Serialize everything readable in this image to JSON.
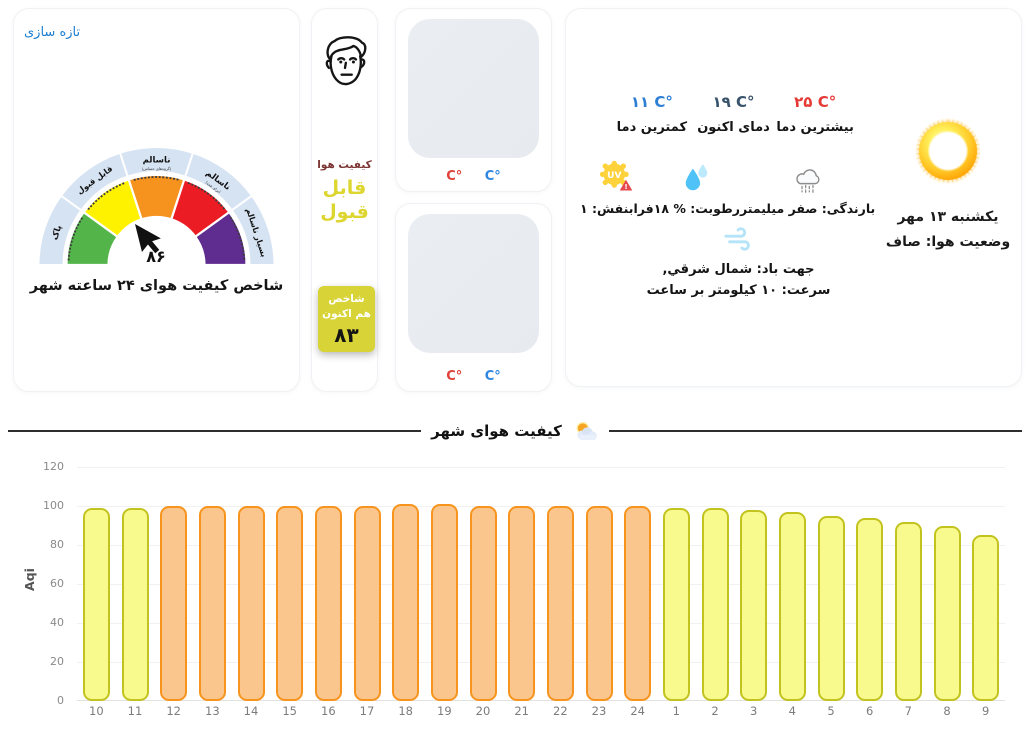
{
  "refresh_label": "تازه سازی",
  "colors": {
    "accent_blue": "#1e7fd0",
    "gauge_ring": "#d6e3f3",
    "divider_line": "#2e2e2e"
  },
  "gauge": {
    "value": "۸۶",
    "title": "شاخص کیفیت هوای ۲۴ ساعته شهر",
    "segments": [
      {
        "label": "پاک",
        "sublabel": "",
        "color": "#53b449"
      },
      {
        "label": "قابل قبول",
        "sublabel": "",
        "color": "#fff200"
      },
      {
        "label": "ناسالم",
        "sublabel": "(گروه‌های حساس)",
        "color": "#f6921e"
      },
      {
        "label": "ناسالم",
        "sublabel": "(برای همه)",
        "color": "#ec1c24"
      },
      {
        "label": "بسیار ناسالم",
        "sublabel": "",
        "color": "#5f2c90"
      }
    ]
  },
  "quality_card": {
    "label": "کیفیت هوا",
    "label_color": "#7b3333",
    "status": "قابل قبول",
    "status_color": "#ddd630",
    "badge_label": "شاخص هم اکنون",
    "badge_value": "۸۳",
    "badge_color": "#d8d336"
  },
  "image_cards": [
    {
      "temp_a": "C°",
      "temp_a_color": "#e04038",
      "temp_b": "C°",
      "temp_b_color": "#2d86e0"
    },
    {
      "temp_a": "C°",
      "temp_a_color": "#e04038",
      "temp_b": "C°",
      "temp_b_color": "#2d86e0"
    }
  ],
  "weather": {
    "temps": [
      {
        "value": "۱۱ C°",
        "label": "کمترین دما",
        "color": "#2e7ed4"
      },
      {
        "value": "۱۹ C°",
        "label": "دمای اکنون",
        "color": "#39536b"
      },
      {
        "value": "۲۵ C°",
        "label": "بیشترین دما",
        "color": "#e53935"
      }
    ],
    "metrics": [
      {
        "name": "uv",
        "label": "فرابنفش: ۱"
      },
      {
        "name": "humidity",
        "label": "رطوبت: % ۱۸"
      },
      {
        "name": "rain",
        "label": "بارندگی: صفر میلیمتر"
      }
    ],
    "wind": {
      "direction": "جهت باد: شمال شرقي,",
      "speed": "سرعت: ۱۰ کیلومتر بر ساعت"
    },
    "date": "یکشنبه ۱۳ مهر",
    "condition": "وضعیت هوا: صاف"
  },
  "section": {
    "title": "کیفیت هوای شهر"
  },
  "chart_data": {
    "type": "bar",
    "title": "کیفیت هوای شهر",
    "xlabel": "",
    "ylabel": "Aqi",
    "ylim": [
      0,
      120
    ],
    "yticks": [
      0,
      20,
      40,
      60,
      80,
      100,
      120
    ],
    "grid": true,
    "legend": false,
    "categories": [
      "10",
      "11",
      "12",
      "13",
      "14",
      "15",
      "16",
      "17",
      "18",
      "19",
      "20",
      "21",
      "22",
      "23",
      "24",
      "1",
      "2",
      "3",
      "4",
      "5",
      "6",
      "7",
      "8",
      "9"
    ],
    "values": [
      99,
      99,
      100,
      100,
      100,
      100,
      100,
      100,
      101,
      101,
      100,
      100,
      100,
      100,
      100,
      99,
      99,
      98,
      97,
      95,
      94,
      92,
      90,
      85
    ],
    "bar_colors": [
      "yellow",
      "yellow",
      "orange",
      "orange",
      "orange",
      "orange",
      "orange",
      "orange",
      "orange",
      "orange",
      "orange",
      "orange",
      "orange",
      "orange",
      "orange",
      "yellow",
      "yellow",
      "yellow",
      "yellow",
      "yellow",
      "yellow",
      "yellow",
      "yellow",
      "yellow"
    ],
    "palette": {
      "yellow": {
        "fill": "#f9fa8e",
        "stroke": "#c2c31f"
      },
      "orange": {
        "fill": "#fbc68e",
        "stroke": "#f7941d"
      }
    }
  }
}
